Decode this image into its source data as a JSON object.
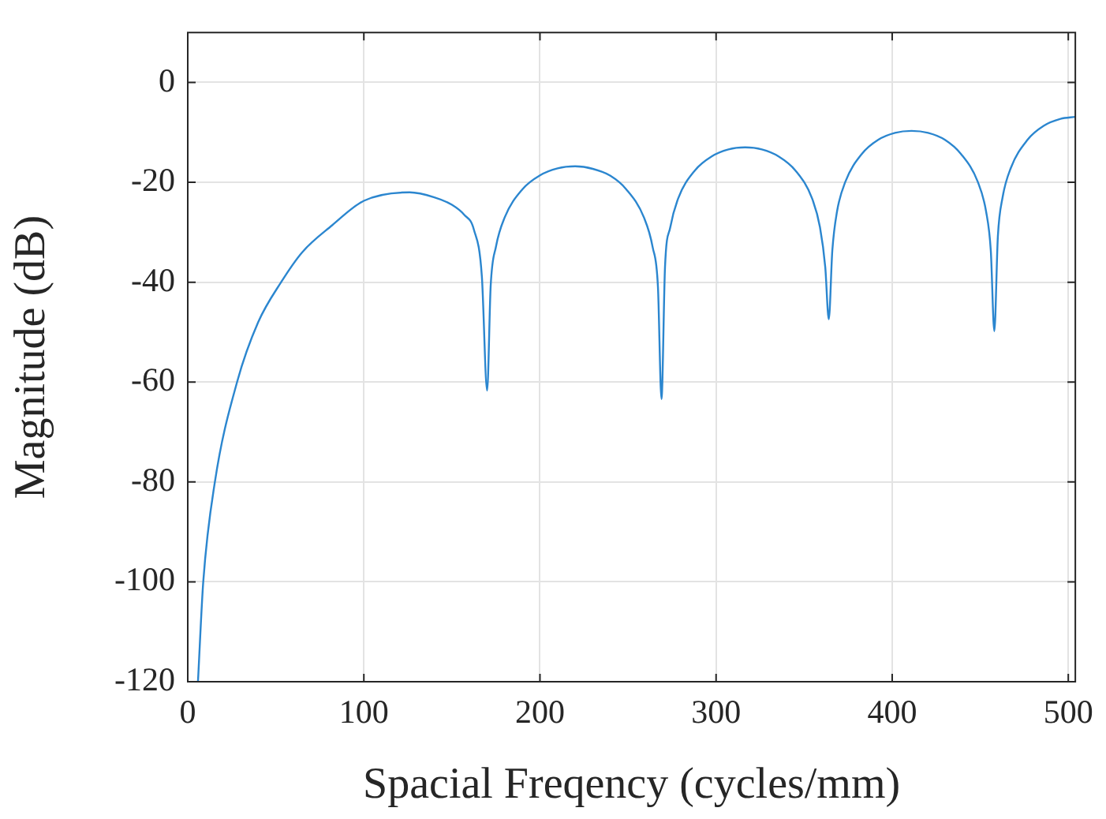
{
  "chart_data": {
    "type": "line",
    "xlabel": "Spacial Freqency (cycles/mm)",
    "ylabel": "Magnitude (dB)",
    "xlim": [
      0,
      504
    ],
    "ylim": [
      -120,
      10
    ],
    "xticks": [
      0,
      100,
      200,
      300,
      400,
      500
    ],
    "yticks": [
      -120,
      -100,
      -80,
      -60,
      -40,
      -20,
      0
    ],
    "grid": true,
    "legend": false,
    "marker": "none",
    "line_style": "solid",
    "series": [
      {
        "color": "#2b86cf",
        "x": [
          5.8,
          8.8,
          15.4,
          28,
          40,
          53,
          65,
          82,
          100,
          126,
          140,
          150,
          157,
          162.5,
          167,
          170,
          172,
          175,
          180,
          190,
          200,
          210,
          220,
          230,
          240,
          249,
          259,
          264,
          267,
          269,
          271,
          274,
          278.5,
          288,
          297.5,
          307,
          316.5,
          326,
          335.5,
          345,
          354.5,
          359,
          362,
          364,
          366,
          368.7,
          373.4,
          382.8,
          392,
          401.6,
          411,
          420.4,
          430,
          439,
          448.6,
          453.3,
          456,
          458,
          460,
          462.7,
          467.4,
          476.8,
          486,
          495.6,
          504
        ],
        "values": [
          -120,
          -100,
          -80,
          -60,
          -48,
          -40,
          -34,
          -28.6,
          -23.7,
          -22,
          -23,
          -24.5,
          -26.5,
          -29.5,
          -38.8,
          -61.7,
          -40.8,
          -32.9,
          -27,
          -21.4,
          -18.6,
          -17.2,
          -16.8,
          -17.3,
          -18.7,
          -21.4,
          -27,
          -33,
          -41,
          -63.4,
          -37,
          -29,
          -23.2,
          -17.6,
          -14.8,
          -13.4,
          -13,
          -13.4,
          -14.8,
          -17.6,
          -23.2,
          -29,
          -37,
          -47.4,
          -33.7,
          -25.8,
          -19.9,
          -14.3,
          -11.5,
          -10.1,
          -9.7,
          -10.1,
          -11.5,
          -14.3,
          -19.9,
          -25.8,
          -33.7,
          -49.8,
          -30.9,
          -23,
          -17.1,
          -11.5,
          -8.7,
          -7.3,
          -6.9
        ]
      }
    ]
  }
}
